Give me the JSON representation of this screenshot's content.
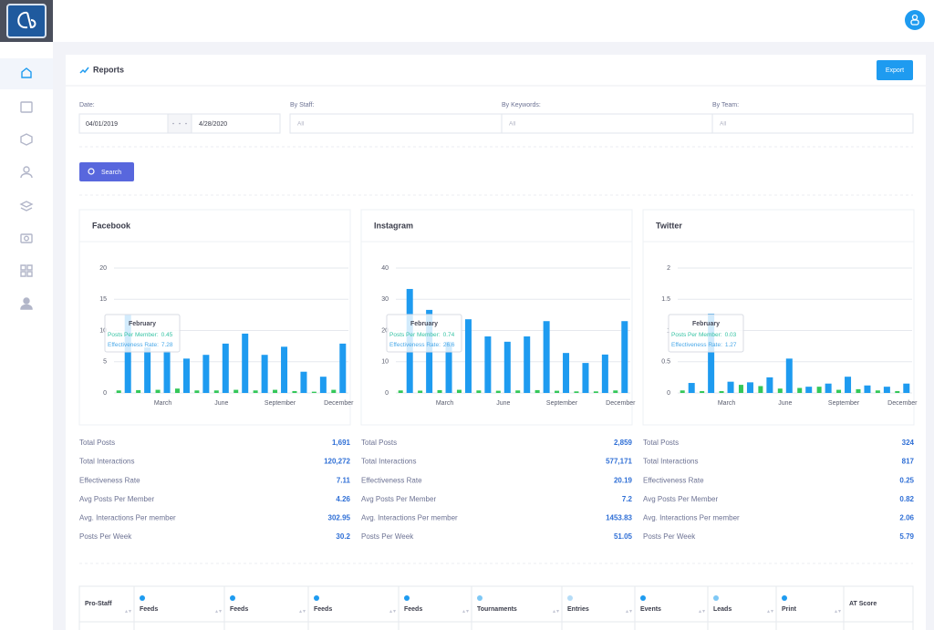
{
  "header": {
    "title": "Reports",
    "export": "Export"
  },
  "filters": {
    "date_label": "Date:",
    "date_from": "04/01/2019",
    "date_to": "4/28/2020",
    "staff_label": "By Staff:",
    "staff_value": "All",
    "keywords_label": "By Keywords:",
    "keywords_value": "All",
    "team_label": "By Team:",
    "team_value": "All",
    "search": "Search"
  },
  "chart_data": [
    {
      "type": "bar",
      "title": "Facebook",
      "categories": [
        null,
        null,
        "March",
        null,
        null,
        "June",
        null,
        null,
        "September",
        null,
        null,
        "December"
      ],
      "series": [
        {
          "name": "Posts Per Member",
          "color": "#34c759",
          "values": [
            0.4,
            0.45,
            0.5,
            0.7,
            0.4,
            0.4,
            0.5,
            0.4,
            0.5,
            0.3,
            0.2,
            0.5
          ]
        },
        {
          "name": "Effectiveness Rate",
          "color": "#1e9bf0",
          "values": [
            12.5,
            7.28,
            6.7,
            5.5,
            6.1,
            7.9,
            9.5,
            6.1,
            7.4,
            3.4,
            2.6,
            7.9
          ]
        }
      ],
      "ylim": [
        0,
        20
      ],
      "yticks": [
        0,
        5,
        10,
        15,
        20
      ],
      "grid": true,
      "tooltip": {
        "title": "February",
        "rows": [
          {
            "label": "Posts Per Member:",
            "value": 0.45
          },
          {
            "label": "Effectiveness Rate:",
            "value": 7.28
          }
        ]
      }
    },
    {
      "type": "bar",
      "title": "Instagram",
      "categories": [
        null,
        null,
        "March",
        null,
        null,
        "June",
        null,
        null,
        "September",
        null,
        null,
        "December"
      ],
      "series": [
        {
          "name": "Posts Per Member",
          "color": "#34c759",
          "values": [
            0.8,
            0.74,
            0.9,
            1.0,
            0.8,
            0.7,
            0.8,
            0.9,
            0.7,
            0.5,
            0.5,
            0.8
          ]
        },
        {
          "name": "Effectiveness Rate",
          "color": "#1e9bf0",
          "values": [
            33.3,
            26.6,
            16.4,
            23.6,
            18.1,
            16.4,
            18.1,
            23,
            12.8,
            9.6,
            12.3,
            23
          ]
        }
      ],
      "ylim": [
        0,
        40
      ],
      "yticks": [
        0,
        10,
        20,
        30,
        40
      ],
      "grid": true,
      "tooltip": {
        "title": "February",
        "rows": [
          {
            "label": "Posts Per Member:",
            "value": 0.74
          },
          {
            "label": "Effectiveness Rate:",
            "value": 26.6
          }
        ]
      }
    },
    {
      "type": "bar",
      "title": "Twitter",
      "categories": [
        null,
        null,
        "March",
        null,
        null,
        "June",
        null,
        null,
        "September",
        null,
        null,
        "December"
      ],
      "series": [
        {
          "name": "Posts Per Member",
          "color": "#34c759",
          "values": [
            0.04,
            0.03,
            0.03,
            0.13,
            0.11,
            0.07,
            0.08,
            0.1,
            0.05,
            0.06,
            0.04,
            0.03
          ]
        },
        {
          "name": "Effectiveness Rate",
          "color": "#1e9bf0",
          "values": [
            0.16,
            1.27,
            0.18,
            0.17,
            0.25,
            0.55,
            0.1,
            0.15,
            0.26,
            0.12,
            0.1,
            0.15
          ]
        }
      ],
      "ylim": [
        0,
        2
      ],
      "yticks": [
        0,
        0.5,
        1,
        1.5,
        2
      ],
      "grid": true,
      "tooltip": {
        "title": "February",
        "rows": [
          {
            "label": "Posts Per Member:",
            "value": 0.03
          },
          {
            "label": "Effectiveness Rate:",
            "value": 1.27
          }
        ]
      }
    }
  ],
  "summaries": [
    [
      {
        "label": "Total Posts",
        "value": "1,691"
      },
      {
        "label": "Total Interactions",
        "value": "120,272"
      },
      {
        "label": "Effectiveness Rate",
        "value": "7.11"
      },
      {
        "label": "Avg Posts Per Member",
        "value": "4.26"
      },
      {
        "label": "Avg. Interactions Per member",
        "value": "302.95"
      },
      {
        "label": "Posts Per Week",
        "value": "30.2"
      }
    ],
    [
      {
        "label": "Total Posts",
        "value": "2,859"
      },
      {
        "label": "Total Interactions",
        "value": "577,171"
      },
      {
        "label": "Effectiveness Rate",
        "value": "20.19"
      },
      {
        "label": "Avg Posts Per Member",
        "value": "7.2"
      },
      {
        "label": "Avg. Interactions Per member",
        "value": "1453.83"
      },
      {
        "label": "Posts Per Week",
        "value": "51.05"
      }
    ],
    [
      {
        "label": "Total Posts",
        "value": "324"
      },
      {
        "label": "Total Interactions",
        "value": "817"
      },
      {
        "label": "Effectiveness Rate",
        "value": "0.25"
      },
      {
        "label": "Avg Posts Per Member",
        "value": "0.82"
      },
      {
        "label": "Avg. Interactions Per member",
        "value": "2.06"
      },
      {
        "label": "Posts Per Week",
        "value": "5.79"
      }
    ]
  ],
  "table": {
    "columns": [
      "Pro-Staff",
      "Feeds",
      "Feeds",
      "Feeds",
      "Feeds",
      "Tournaments",
      "Entries",
      "Events",
      "Leads",
      "Print",
      "AT Score"
    ]
  }
}
